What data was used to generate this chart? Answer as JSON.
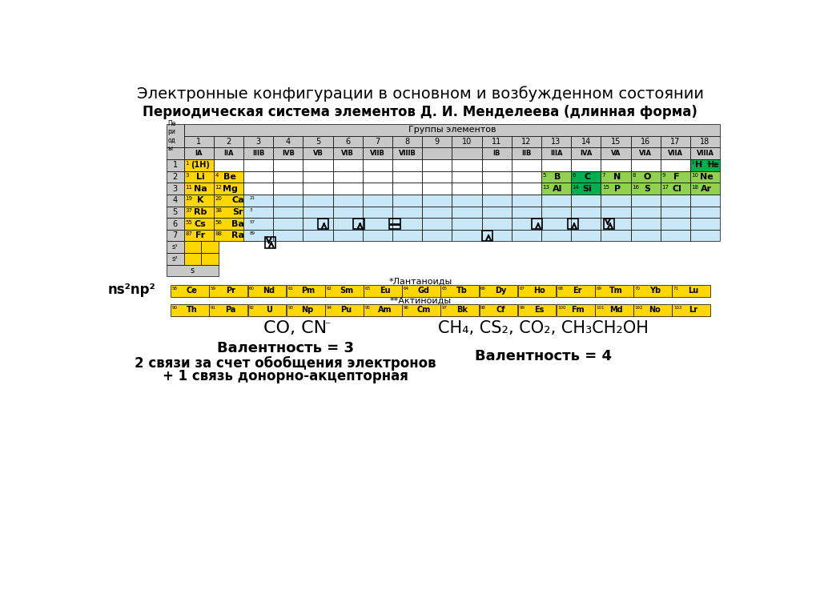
{
  "title": "Электронные конфигурации в основном и возбужденном состоянии",
  "subtitle": "Периодическая система элементов Д. И. Менделеева (длинная форма)",
  "bg_color": "#ffffff",
  "table_header_bg": "#c8c8c8",
  "table_light_blue": "#c8e8f8",
  "yellow": "#ffd700",
  "green_dark": "#00b050",
  "green_light": "#92d050",
  "gray": "#c8c8c8",
  "white": "#ffffff",
  "groups": [
    "1",
    "2",
    "3",
    "4",
    "5",
    "6",
    "7",
    "8",
    "9",
    "10",
    "11",
    "12",
    "13",
    "14",
    "15",
    "16",
    "17",
    "18"
  ],
  "group_labels": [
    "IA",
    "IIA",
    "IIIB",
    "IVB",
    "VB",
    "VIB",
    "VIIB",
    "VIIIB",
    "",
    "",
    "IB",
    "IIB",
    "IIIA",
    "IVA",
    "VA",
    "VIA",
    "VIIA",
    "VIIIA"
  ],
  "formula_left": "CO, CN",
  "formula_right": "CH₄, CS₂, CO₂, CH₃CH₂OH",
  "valence3": "Валентность = 3",
  "valence4": "Валентность = 4",
  "bonds_text": "2 связи за счет обобщения электронов",
  "donor_text": "+ 1 связь донорно-акцепторная",
  "lanthanides_label": "*Лантаноиды",
  "actinides_label": "**Актиноиды",
  "ns_label": "ns²np²",
  "lanthanides": [
    "58Ce",
    "59Pr",
    "60Nd",
    "61Pm",
    "62Sm",
    "63Eu",
    "64Gd",
    "65Tb",
    "66Dy",
    "67Ho",
    "68Er",
    "69Tm",
    "70Yb",
    "71Lu"
  ],
  "actinides": [
    "90Th",
    "91Pa",
    "92U",
    "93Np",
    "94Pu",
    "95Am",
    "96Cm",
    "97Bk",
    "98Cf",
    "99Es",
    "100Fm",
    "101Md",
    "192No",
    "103Lr"
  ]
}
